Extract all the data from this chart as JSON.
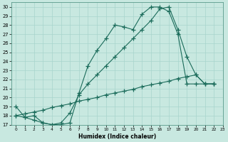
{
  "xlabel": "Humidex (Indice chaleur)",
  "bg_color": "#c8e8e0",
  "grid_color": "#a8d4cc",
  "line_color": "#1a6b5a",
  "xlim": [
    -0.5,
    23
  ],
  "ylim": [
    17,
    30.5
  ],
  "yticks": [
    17,
    18,
    19,
    20,
    21,
    22,
    23,
    24,
    25,
    26,
    27,
    28,
    29,
    30
  ],
  "xticks": [
    0,
    1,
    2,
    3,
    4,
    5,
    6,
    7,
    8,
    9,
    10,
    11,
    12,
    13,
    14,
    15,
    16,
    17,
    18,
    19,
    20,
    21,
    22,
    23
  ],
  "line1_x": [
    0,
    1,
    2,
    3,
    4,
    5,
    6,
    7,
    8,
    9,
    10,
    11,
    12,
    13,
    14,
    15,
    16,
    17,
    18,
    19,
    20,
    21,
    22
  ],
  "line1_y": [
    19.0,
    17.8,
    18.0,
    17.2,
    17.0,
    17.0,
    17.2,
    20.5,
    23.5,
    25.2,
    26.5,
    28.0,
    27.8,
    27.5,
    29.2,
    30.0,
    30.0,
    29.5,
    27.0,
    21.5,
    21.5,
    21.5,
    21.5
  ],
  "line2_x": [
    0,
    1,
    2,
    3,
    4,
    5,
    6,
    7,
    8,
    9,
    10,
    11,
    12,
    13,
    14,
    15,
    16,
    17,
    18,
    19,
    20,
    21,
    22
  ],
  "line2_y": [
    18.0,
    17.8,
    17.5,
    17.2,
    17.0,
    17.2,
    18.3,
    20.3,
    21.5,
    22.5,
    23.5,
    24.5,
    25.5,
    26.5,
    27.5,
    28.5,
    29.8,
    30.0,
    27.5,
    24.5,
    22.5,
    21.5,
    21.5
  ],
  "line3_x": [
    0,
    1,
    2,
    3,
    4,
    5,
    6,
    7,
    8,
    9,
    10,
    11,
    12,
    13,
    14,
    15,
    16,
    17,
    18,
    19,
    20,
    21,
    22
  ],
  "line3_y": [
    18.0,
    18.2,
    18.4,
    18.6,
    18.9,
    19.1,
    19.3,
    19.6,
    19.8,
    20.0,
    20.3,
    20.5,
    20.7,
    20.9,
    21.2,
    21.4,
    21.6,
    21.8,
    22.1,
    22.3,
    22.5,
    21.5,
    21.5
  ]
}
